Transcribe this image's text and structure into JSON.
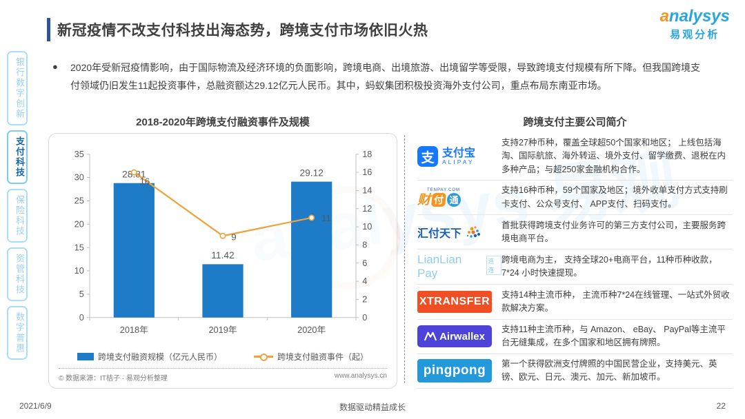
{
  "page": {
    "date": "2021/6/9",
    "slogan": "数据驱动精益成长",
    "page_number": "22",
    "watermark": "analysys 易观"
  },
  "header": {
    "title": "新冠疫情不改支付科技出海态势，跨境支付市场依旧火热",
    "logo": {
      "brand_a": "a",
      "brand_rest": "nalysys",
      "brand_cn": "易观分析"
    }
  },
  "sidebar": {
    "items": [
      {
        "id": "bank-digital",
        "label": "银行数字创新",
        "active": false
      },
      {
        "id": "payment-tech",
        "label": "支付科技",
        "active": true
      },
      {
        "id": "insurance-tech",
        "label": "保险科技",
        "active": false
      },
      {
        "id": "asset-tech",
        "label": "资管科技",
        "active": false
      },
      {
        "id": "digital-inclusion",
        "label": "数字普惠",
        "active": false
      }
    ]
  },
  "bullet": {
    "marker": "●",
    "text": "2020年受新冠疫情影响，由于国际物流及经济环境的负面影响，跨境电商、出境旅游、出境留学等受限，导致跨境支付规模有所下降。但我国跨境支付领域仍旧发生11起投资事件，总融资额达29.12亿元人民币。其中，蚂蚁集团积极投资海外支付公司，重点布局东南亚市场。"
  },
  "chart_data": {
    "type": "bar",
    "title": "2018-2020年跨境支付融资事件及规模",
    "categories": [
      "2018年",
      "2019年",
      "2020年"
    ],
    "series": [
      {
        "name": "跨境支付融资规模（亿元人民币）",
        "type": "bar",
        "axis": "left",
        "values": [
          28.81,
          11.42,
          29.12
        ],
        "color": "#1E7BC8"
      },
      {
        "name": "跨境支付融资事件（起）",
        "type": "line",
        "axis": "right",
        "values": [
          16,
          9,
          11
        ],
        "color": "#EFA23C"
      }
    ],
    "left_axis": {
      "min": 0,
      "max": 35,
      "step": 5
    },
    "right_axis": {
      "min": 0,
      "max": 18,
      "step": 2
    },
    "legend_position": "bottom",
    "grid": false
  },
  "chart_footer": {
    "source": "© 数据来源：IT桔子 · 易观分析整理",
    "website": "www.analysys.cn"
  },
  "companies": {
    "title": "跨境支付主要公司简介",
    "rows": [
      {
        "id": "alipay",
        "logo_type": "alipay",
        "logo": {
          "icon_char": "支",
          "name": "支付宝",
          "sub": "ALIPAY"
        },
        "desc": "支持27种币种，覆盖全球超50个国家和地区； 上线包括海淘、国际航旅、海外转运、境外支付、留学缴费、退税在内多种产品；与超250家金融机构合作。"
      },
      {
        "id": "tenpay",
        "logo_type": "tenpay",
        "logo": {
          "top": "TENPAY.COM",
          "c1": "财",
          "c2": "付",
          "c3": "通"
        },
        "desc": "支持16种币种，59个国家及地区；境外收单支付方式支持刷卡支付、公众号支付、 APP支付、扫码支付。"
      },
      {
        "id": "huifu",
        "logo_type": "huifu",
        "logo": {
          "name": "汇付天下"
        },
        "desc": "首批获得跨境支付业务许可的第三方支付公司，主要服务跨境电商平台。"
      },
      {
        "id": "lianlian",
        "logo_type": "lianlian",
        "logo": {
          "name": "LianLian Pay",
          "sub": "连连"
        },
        "desc": "跨境电商为主， 支持全球20+电商平台，11种币种收款，7*24 小时快速提现。"
      },
      {
        "id": "xtransfer",
        "logo_type": "box-xt",
        "logo": {
          "name": "XTRANSFER"
        },
        "desc": "支持14种主流币种， 主流币种7*24在线管理、一站式外贸收款解决方案。"
      },
      {
        "id": "airwallex",
        "logo_type": "box-aw",
        "logo": {
          "name": "Airwallex"
        },
        "desc": "支持11种主流币种，与 Amazon、 eBay、 PayPal等主流平台无缝集成，在多个国家和地区拥有牌照。"
      },
      {
        "id": "pingpong",
        "logo_type": "box-pp",
        "logo": {
          "name": "pingpong"
        },
        "desc": "第一个获得欧洲支付牌照的中国民营企业，支持美元、英镑、欧元、日元、澳元、加元、新加坡币。"
      }
    ]
  },
  "colors": {
    "bar_blue": "#1E7BC8",
    "line_orange": "#EFA23C",
    "axis_gray": "#BFBFBF",
    "label_gray": "#595959",
    "sidebar_blue": "#9BD2F0",
    "sidebar_active": "#1566A9",
    "accent": "#2F5597",
    "brand_orange": "#F7941D",
    "brand_blue": "#29A6DF"
  }
}
